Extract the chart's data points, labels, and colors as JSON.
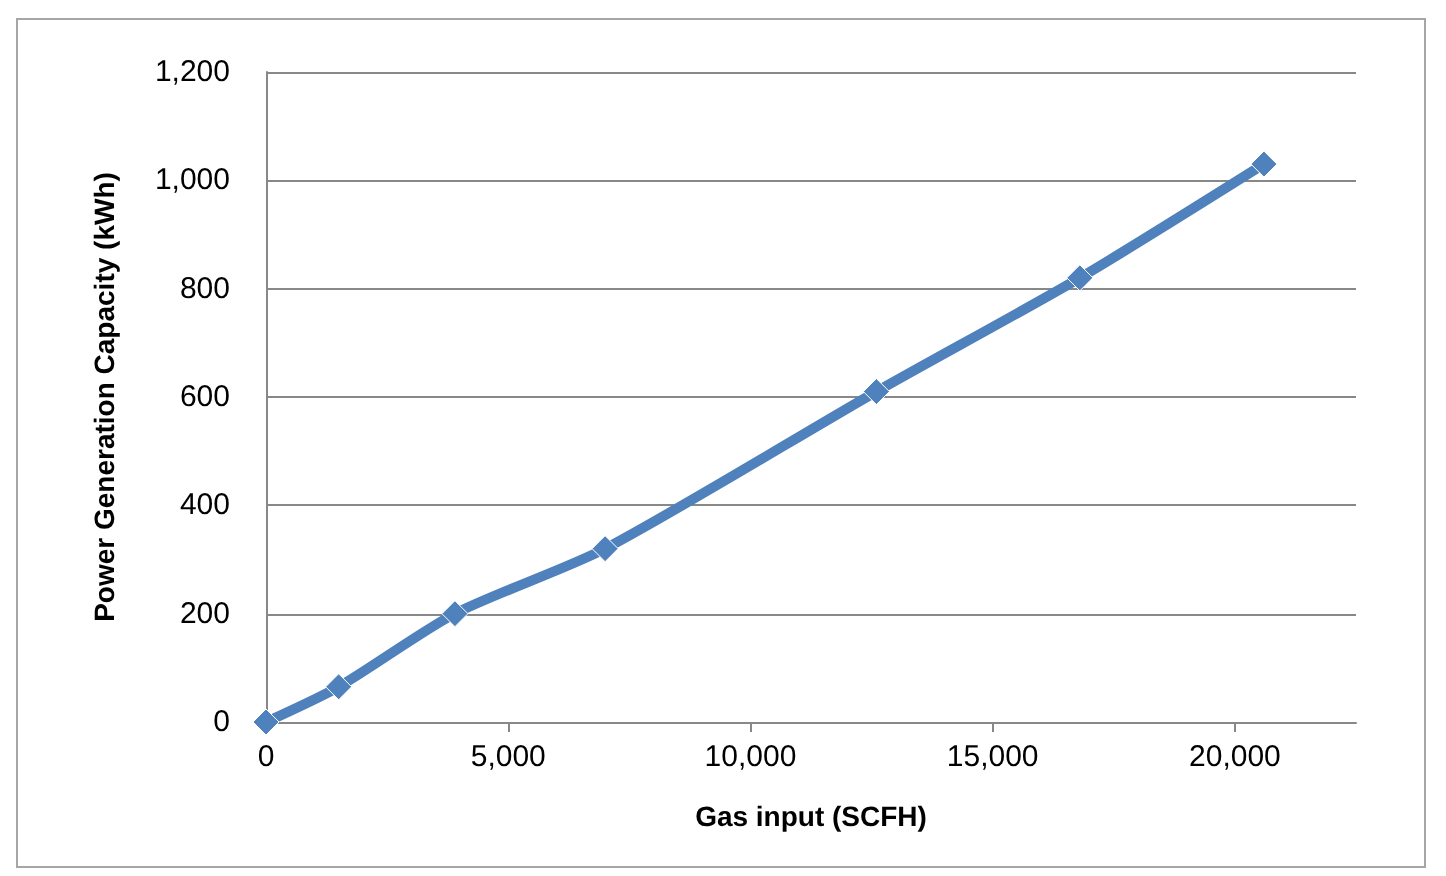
{
  "chart_data": {
    "type": "line",
    "xlabel": "Gas input (SCFH)",
    "ylabel": "Power Generation Capacity (kWh)",
    "x": [
      0,
      1500,
      3900,
      7000,
      12600,
      16800,
      20600
    ],
    "series": [
      {
        "color": "#4f81bd",
        "values": [
          0,
          65,
          200,
          320,
          610,
          820,
          1030
        ]
      }
    ],
    "xlim": [
      0,
      22500
    ],
    "xticks": [
      0,
      {
        "value": 5000,
        "label": "5,000"
      },
      {
        "value": 10000,
        "label": "10,000"
      },
      {
        "value": 15000,
        "label": "15,000"
      },
      {
        "value": 20000,
        "label": "20,000"
      }
    ],
    "ylim": [
      0,
      1200
    ],
    "yticks": [
      0,
      200,
      400,
      600,
      800,
      {
        "value": 1000,
        "label": "1,000"
      },
      {
        "value": 1200,
        "label": "1,200"
      }
    ],
    "grid": "y",
    "marker": "diamond",
    "line_style": "solid"
  }
}
